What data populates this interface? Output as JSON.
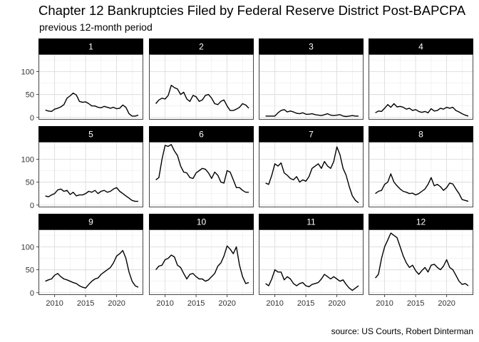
{
  "title": "Chapter 12 Bankruptcies Filed by Federal Reserve District Post-BAPCPA",
  "subtitle": "previous 12-month period",
  "caption": "source: US Courts, Robert Dinterman",
  "colors": {
    "strip": "#000000",
    "strip_text": "#ffffff",
    "line": "#000000",
    "grid": "#dcdcdc",
    "panel_border": "#333333"
  },
  "chart_data": {
    "type": "line",
    "facets": 12,
    "layout": {
      "rows": 3,
      "cols": 4
    },
    "xlim": [
      2007.4,
      2024.3
    ],
    "ylim": [
      -5,
      138
    ],
    "x_ticks": [
      2010,
      2015,
      2020
    ],
    "x_tick_labels": [
      "2010",
      "2015",
      "2020"
    ],
    "y_ticks": [
      0,
      50,
      100
    ],
    "y_tick_labels": [
      "0",
      "50",
      "100"
    ],
    "grid": true,
    "panels": [
      {
        "label": "1",
        "x": [
          2008.5,
          2009.0,
          2009.5,
          2010.0,
          2010.5,
          2011.0,
          2011.5,
          2012.0,
          2012.5,
          2013.0,
          2013.5,
          2014.0,
          2014.5,
          2015.0,
          2015.5,
          2016.0,
          2016.5,
          2017.0,
          2017.5,
          2018.0,
          2018.5,
          2019.0,
          2019.5,
          2020.0,
          2020.5,
          2021.0,
          2021.5,
          2022.0,
          2022.5,
          2023.0,
          2023.5
        ],
        "y": [
          16,
          14,
          13,
          18,
          20,
          23,
          28,
          42,
          47,
          53,
          49,
          35,
          33,
          34,
          30,
          25,
          25,
          22,
          21,
          24,
          22,
          20,
          22,
          19,
          20,
          27,
          22,
          8,
          3,
          3,
          5
        ]
      },
      {
        "label": "2",
        "x": [
          2008.5,
          2009.0,
          2009.5,
          2010.0,
          2010.5,
          2011.0,
          2011.5,
          2012.0,
          2012.5,
          2013.0,
          2013.5,
          2014.0,
          2014.5,
          2015.0,
          2015.5,
          2016.0,
          2016.5,
          2017.0,
          2017.5,
          2018.0,
          2018.5,
          2019.0,
          2019.5,
          2020.0,
          2020.5,
          2021.0,
          2021.5,
          2022.0,
          2022.5,
          2023.0,
          2023.5
        ],
        "y": [
          30,
          38,
          42,
          40,
          48,
          70,
          65,
          62,
          50,
          55,
          40,
          35,
          48,
          45,
          35,
          38,
          48,
          50,
          42,
          30,
          28,
          35,
          38,
          25,
          15,
          15,
          18,
          22,
          30,
          27,
          20
        ]
      },
      {
        "label": "3",
        "x": [
          2008.5,
          2009.0,
          2009.5,
          2010.0,
          2010.5,
          2011.0,
          2011.5,
          2012.0,
          2012.5,
          2013.0,
          2013.5,
          2014.0,
          2014.5,
          2015.0,
          2015.5,
          2016.0,
          2016.5,
          2017.0,
          2017.5,
          2018.0,
          2018.5,
          2019.0,
          2019.5,
          2020.0,
          2020.5,
          2021.0,
          2021.5,
          2022.0,
          2022.5,
          2023.0,
          2023.5
        ],
        "y": [
          3,
          3,
          3,
          3,
          10,
          15,
          17,
          12,
          14,
          12,
          9,
          8,
          10,
          7,
          7,
          8,
          6,
          5,
          4,
          6,
          8,
          5,
          4,
          5,
          6,
          3,
          2,
          3,
          4,
          3,
          3
        ]
      },
      {
        "label": "4",
        "x": [
          2008.5,
          2009.0,
          2009.5,
          2010.0,
          2010.5,
          2011.0,
          2011.5,
          2012.0,
          2012.5,
          2013.0,
          2013.5,
          2014.0,
          2014.5,
          2015.0,
          2015.5,
          2016.0,
          2016.5,
          2017.0,
          2017.5,
          2018.0,
          2018.5,
          2019.0,
          2019.5,
          2020.0,
          2020.5,
          2021.0,
          2021.5,
          2022.0,
          2022.5,
          2023.0,
          2023.5
        ],
        "y": [
          10,
          14,
          13,
          20,
          28,
          22,
          30,
          23,
          24,
          22,
          18,
          20,
          15,
          17,
          13,
          11,
          13,
          10,
          19,
          14,
          15,
          20,
          18,
          22,
          20,
          22,
          15,
          12,
          8,
          5,
          3
        ]
      },
      {
        "label": "5",
        "x": [
          2008.5,
          2009.0,
          2009.5,
          2010.0,
          2010.5,
          2011.0,
          2011.5,
          2012.0,
          2012.5,
          2013.0,
          2013.5,
          2014.0,
          2014.5,
          2015.0,
          2015.5,
          2016.0,
          2016.5,
          2017.0,
          2017.5,
          2018.0,
          2018.5,
          2019.0,
          2019.5,
          2020.0,
          2020.5,
          2021.0,
          2021.5,
          2022.0,
          2022.5,
          2023.0,
          2023.5
        ],
        "y": [
          20,
          18,
          22,
          25,
          33,
          35,
          30,
          32,
          23,
          28,
          20,
          22,
          22,
          25,
          30,
          28,
          32,
          25,
          30,
          32,
          28,
          30,
          35,
          38,
          30,
          25,
          20,
          15,
          10,
          8,
          8
        ]
      },
      {
        "label": "6",
        "x": [
          2008.5,
          2009.0,
          2009.5,
          2010.0,
          2010.5,
          2011.0,
          2011.5,
          2012.0,
          2012.5,
          2013.0,
          2013.5,
          2014.0,
          2014.5,
          2015.0,
          2015.5,
          2016.0,
          2016.5,
          2017.0,
          2017.5,
          2018.0,
          2018.5,
          2019.0,
          2019.5,
          2020.0,
          2020.5,
          2021.0,
          2021.5,
          2022.0,
          2022.5,
          2023.0,
          2023.5
        ],
        "y": [
          55,
          60,
          100,
          130,
          128,
          132,
          118,
          108,
          85,
          72,
          70,
          60,
          58,
          70,
          75,
          80,
          78,
          70,
          58,
          72,
          65,
          50,
          48,
          75,
          72,
          55,
          38,
          38,
          32,
          28,
          28
        ]
      },
      {
        "label": "7",
        "x": [
          2008.5,
          2009.0,
          2009.5,
          2010.0,
          2010.5,
          2011.0,
          2011.5,
          2012.0,
          2012.5,
          2013.0,
          2013.5,
          2014.0,
          2014.5,
          2015.0,
          2015.5,
          2016.0,
          2016.5,
          2017.0,
          2017.5,
          2018.0,
          2018.5,
          2019.0,
          2019.5,
          2020.0,
          2020.5,
          2021.0,
          2021.5,
          2022.0,
          2022.5,
          2023.0,
          2023.5
        ],
        "y": [
          48,
          45,
          65,
          90,
          85,
          92,
          70,
          65,
          58,
          55,
          62,
          50,
          55,
          52,
          62,
          80,
          85,
          90,
          80,
          95,
          85,
          80,
          95,
          127,
          110,
          80,
          65,
          40,
          20,
          10,
          5
        ]
      },
      {
        "label": "8",
        "x": [
          2008.5,
          2009.0,
          2009.5,
          2010.0,
          2010.5,
          2011.0,
          2011.5,
          2012.0,
          2012.5,
          2013.0,
          2013.5,
          2014.0,
          2014.5,
          2015.0,
          2015.5,
          2016.0,
          2016.5,
          2017.0,
          2017.5,
          2018.0,
          2018.5,
          2019.0,
          2019.5,
          2020.0,
          2020.5,
          2021.0,
          2021.5,
          2022.0,
          2022.5,
          2023.0,
          2023.5
        ],
        "y": [
          25,
          30,
          32,
          45,
          50,
          68,
          50,
          42,
          35,
          30,
          28,
          25,
          26,
          22,
          25,
          30,
          35,
          45,
          60,
          42,
          45,
          40,
          32,
          38,
          48,
          46,
          35,
          25,
          12,
          10,
          8
        ]
      },
      {
        "label": "9",
        "x": [
          2008.5,
          2009.0,
          2009.5,
          2010.0,
          2010.5,
          2011.0,
          2011.5,
          2012.0,
          2012.5,
          2013.0,
          2013.5,
          2014.0,
          2014.5,
          2015.0,
          2015.5,
          2016.0,
          2016.5,
          2017.0,
          2017.5,
          2018.0,
          2018.5,
          2019.0,
          2019.5,
          2020.0,
          2020.5,
          2021.0,
          2021.5,
          2022.0,
          2022.5,
          2023.0,
          2023.5
        ],
        "y": [
          25,
          28,
          30,
          38,
          42,
          35,
          30,
          28,
          25,
          22,
          20,
          15,
          12,
          10,
          18,
          25,
          30,
          32,
          40,
          45,
          50,
          55,
          65,
          80,
          85,
          92,
          75,
          45,
          25,
          15,
          12
        ]
      },
      {
        "label": "10",
        "x": [
          2008.5,
          2009.0,
          2009.5,
          2010.0,
          2010.5,
          2011.0,
          2011.5,
          2012.0,
          2012.5,
          2013.0,
          2013.5,
          2014.0,
          2014.5,
          2015.0,
          2015.5,
          2016.0,
          2016.5,
          2017.0,
          2017.5,
          2018.0,
          2018.5,
          2019.0,
          2019.5,
          2020.0,
          2020.5,
          2021.0,
          2021.5,
          2022.0,
          2022.5,
          2023.0,
          2023.5
        ],
        "y": [
          50,
          58,
          60,
          72,
          75,
          82,
          78,
          60,
          55,
          42,
          30,
          40,
          42,
          35,
          30,
          30,
          25,
          28,
          35,
          42,
          58,
          65,
          80,
          102,
          95,
          85,
          100,
          60,
          35,
          20,
          22
        ]
      },
      {
        "label": "11",
        "x": [
          2008.5,
          2009.0,
          2009.5,
          2010.0,
          2010.5,
          2011.0,
          2011.5,
          2012.0,
          2012.5,
          2013.0,
          2013.5,
          2014.0,
          2014.5,
          2015.0,
          2015.5,
          2016.0,
          2016.5,
          2017.0,
          2017.5,
          2018.0,
          2018.5,
          2019.0,
          2019.5,
          2020.0,
          2020.5,
          2021.0,
          2021.5,
          2022.0,
          2022.5,
          2023.0,
          2023.5
        ],
        "y": [
          20,
          15,
          30,
          50,
          45,
          45,
          28,
          35,
          30,
          20,
          15,
          20,
          22,
          15,
          13,
          18,
          20,
          22,
          30,
          40,
          35,
          30,
          35,
          30,
          25,
          28,
          18,
          10,
          5,
          10,
          15
        ]
      },
      {
        "label": "12",
        "x": [
          2008.5,
          2009.0,
          2009.5,
          2010.0,
          2010.5,
          2011.0,
          2011.5,
          2012.0,
          2012.5,
          2013.0,
          2013.5,
          2014.0,
          2014.5,
          2015.0,
          2015.5,
          2016.0,
          2016.5,
          2017.0,
          2017.5,
          2018.0,
          2018.5,
          2019.0,
          2019.5,
          2020.0,
          2020.5,
          2021.0,
          2021.5,
          2022.0,
          2022.5,
          2023.0,
          2023.5
        ],
        "y": [
          32,
          40,
          75,
          100,
          115,
          130,
          125,
          120,
          100,
          80,
          65,
          55,
          60,
          48,
          40,
          48,
          55,
          45,
          60,
          62,
          55,
          50,
          58,
          72,
          55,
          50,
          38,
          25,
          18,
          20,
          15
        ]
      }
    ]
  }
}
